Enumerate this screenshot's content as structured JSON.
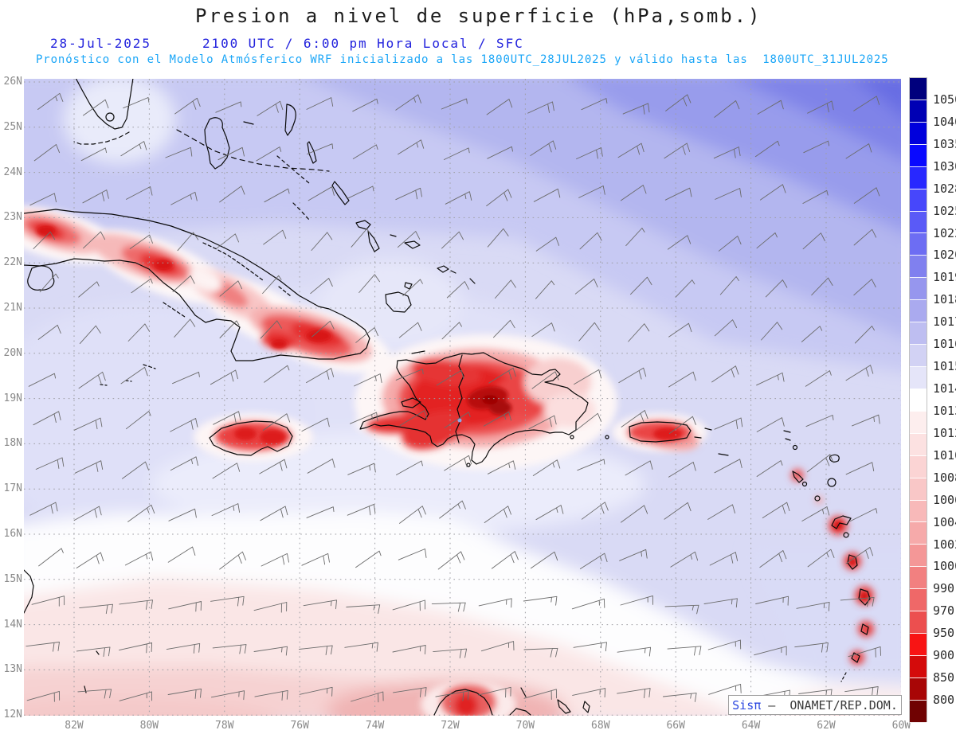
{
  "header": {
    "title": "Presion a nivel de superficie (hPa,somb.)",
    "date": "28-Jul-2025",
    "time_line": "2100 UTC / 6:00 pm Hora Local / SFC",
    "forecast_line": "Pronóstico con el Modelo Atmósferico WRF inicializado a las 1800UTC_28JUL2025 y válido hasta las  1800UTC_31JUL2025"
  },
  "map": {
    "lat_labels": [
      "26N",
      "25N",
      "24N",
      "23N",
      "22N",
      "21N",
      "20N",
      "19N",
      "18N",
      "17N",
      "16N",
      "15N",
      "14N",
      "13N",
      "12N"
    ],
    "lon_labels": [
      "82W",
      "80W",
      "78W",
      "76W",
      "74W",
      "72W",
      "70W",
      "68W",
      "66W",
      "64W",
      "62W",
      "60W"
    ]
  },
  "colorbar": {
    "unit": "hPa",
    "levels": [
      "1050",
      "1040",
      "1035",
      "1030",
      "1028",
      "1025",
      "1022",
      "1020",
      "1019",
      "1018",
      "1017",
      "1016",
      "1015",
      "1014",
      "1013",
      "1012",
      "1010",
      "1008",
      "1006",
      "1004",
      "1002",
      "1000",
      "990",
      "970",
      "950",
      "900",
      "850",
      "800"
    ],
    "colors": [
      "#00007d",
      "#0000b4",
      "#0000dc",
      "#0909ff",
      "#2828ff",
      "#4747fb",
      "#5a5af7",
      "#6d6df3",
      "#8080ef",
      "#9696ee",
      "#aaaaef",
      "#bebef1",
      "#d2d2f4",
      "#e5e5f9",
      "#ffffff",
      "#fdeeee",
      "#fce1e1",
      "#fbd4d4",
      "#f9c7c7",
      "#f8b9b9",
      "#f6aaaa",
      "#f49797",
      "#f28080",
      "#ef6868",
      "#ec4f4f",
      "#f81414",
      "#d40b0b",
      "#a80606",
      "#700202"
    ]
  },
  "credit": {
    "brand": "Sisπ",
    "separator": " –  ",
    "org": "ONAMET/REP.DOM."
  },
  "chart_data": {
    "type": "heatmap",
    "title": "Presion a nivel de superficie (hPa,somb.)",
    "x_tick_labels": [
      "82W",
      "80W",
      "78W",
      "76W",
      "74W",
      "72W",
      "70W",
      "68W",
      "66W",
      "64W",
      "62W",
      "60W"
    ],
    "y_tick_labels": [
      "26N",
      "25N",
      "24N",
      "23N",
      "22N",
      "21N",
      "20N",
      "19N",
      "18N",
      "17N",
      "16N",
      "15N",
      "14N",
      "13N",
      "12N"
    ],
    "scale_levels_hPa": [
      1050,
      1040,
      1035,
      1030,
      1028,
      1025,
      1022,
      1020,
      1019,
      1018,
      1017,
      1016,
      1015,
      1014,
      1013,
      1012,
      1010,
      1008,
      1006,
      1004,
      1002,
      1000,
      990,
      970,
      950,
      900,
      850,
      800
    ],
    "legend_position": "right",
    "grid": "dotted",
    "notes": "Blue shading (1016-1022 hPa) over the Atlantic in the north, near-white 1013-1014 band mid-basin, pink 1010-1013 in the south Caribbean; red terrain-induced low anomalies over Cuba, Hispaniola, Jamaica, Puerto Rico, the Lesser Antilles and the Guajira peninsula; easterly trade-wind barbs throughout."
  }
}
